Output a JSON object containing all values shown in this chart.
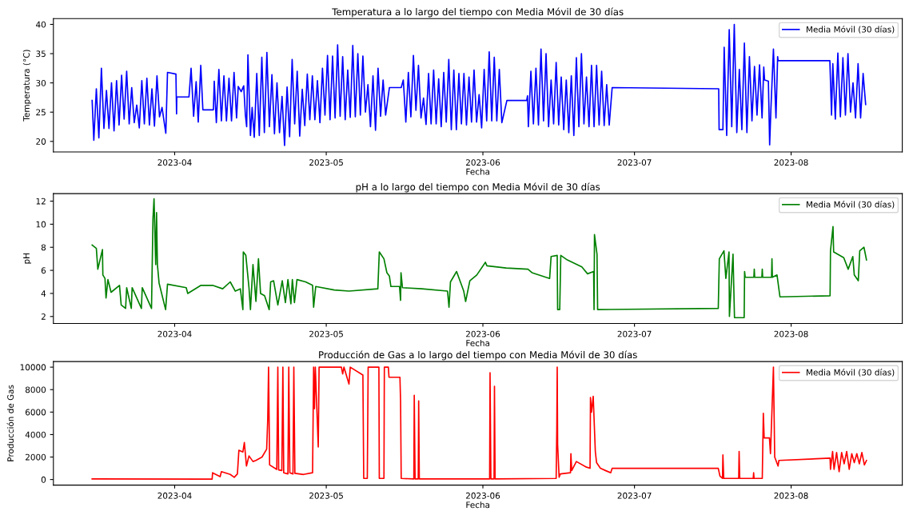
{
  "chart_data": [
    {
      "type": "line",
      "title": "Temperatura a lo largo del tiempo con Media Móvil de 30 días",
      "xlabel": "Fecha",
      "ylabel": "Temperatura (°C)",
      "legend": "top right",
      "xlim": [
        "2023-03-08",
        "2023-08-23"
      ],
      "ylim": [
        18.2,
        41.0
      ],
      "xticks": [
        {
          "value": "2023-04-01",
          "label": "2023-04"
        },
        {
          "value": "2023-05-01",
          "label": "2023-05"
        },
        {
          "value": "2023-06-01",
          "label": "2023-06"
        },
        {
          "value": "2023-07-01",
          "label": "2023-07"
        },
        {
          "value": "2023-08-01",
          "label": "2023-08"
        }
      ],
      "yticks": [
        20,
        25,
        30,
        35,
        40
      ],
      "x": [
        "2023-03-15T16:00",
        "2023-03-16T00:00",
        "2023-03-16T12:00",
        "2023-03-17T00:00",
        "2023-03-17T12:00",
        "2023-03-18T00:00",
        "2023-03-18T12:00",
        "2023-03-19T00:00",
        "2023-03-19T12:00",
        "2023-03-20T00:00",
        "2023-03-20T12:00",
        "2023-03-21T00:00",
        "2023-03-21T12:00",
        "2023-03-22T00:00",
        "2023-03-22T12:00",
        "2023-03-23T00:00",
        "2023-03-23T12:00",
        "2023-03-24T00:00",
        "2023-03-24T12:00",
        "2023-03-25T00:00",
        "2023-03-25T12:00",
        "2023-03-26T00:00",
        "2023-03-26T12:00",
        "2023-03-27T00:00",
        "2023-03-27T12:00",
        "2023-03-28T00:00",
        "2023-03-28T12:00",
        "2023-03-29T00:00",
        "2023-03-29T12:00",
        "2023-03-30T06:00",
        "2023-03-30T14:00",
        "2023-04-01T06:00",
        "2023-04-01T09:00",
        "2023-04-01T10:00",
        "2023-04-03T20:00",
        "2023-04-04T06:00",
        "2023-04-04T18:00",
        "2023-04-05T06:00",
        "2023-04-05T16:00",
        "2023-04-06T04:00",
        "2023-04-06T14:00",
        "2023-04-08T16:00",
        "2023-04-08T20:00",
        "2023-04-09T06:00",
        "2023-04-09T18:00",
        "2023-04-10T06:00",
        "2023-04-10T18:00",
        "2023-04-11T06:00",
        "2023-04-11T18:00",
        "2023-04-12T06:00",
        "2023-04-12T18:00",
        "2023-04-13T06:00",
        "2023-04-13T14:00",
        "2023-04-14T04:00",
        "2023-04-14T16:00",
        "2023-04-15T00:00",
        "2023-04-15T06:00",
        "2023-04-15T12:00",
        "2023-04-16T00:00",
        "2023-04-16T08:00",
        "2023-04-16T18:00",
        "2023-04-17T06:00",
        "2023-04-17T18:00",
        "2023-04-18T06:00",
        "2023-04-18T18:00",
        "2023-04-19T06:00",
        "2023-04-19T18:00",
        "2023-04-20T06:00",
        "2023-04-20T18:00",
        "2023-04-21T06:00",
        "2023-04-21T18:00",
        "2023-04-22T06:00",
        "2023-04-22T18:00",
        "2023-04-23T06:00",
        "2023-04-23T18:00",
        "2023-04-24T06:00",
        "2023-04-24T18:00",
        "2023-04-25T06:00",
        "2023-04-25T18:00",
        "2023-04-26T06:00",
        "2023-04-26T18:00",
        "2023-04-27T06:00",
        "2023-04-27T18:00",
        "2023-04-28T06:00",
        "2023-04-28T18:00",
        "2023-04-29T06:00",
        "2023-04-29T18:00",
        "2023-04-30T06:00",
        "2023-04-30T18:00",
        "2023-05-01T06:00",
        "2023-05-01T18:00",
        "2023-05-02T06:00",
        "2023-05-02T18:00",
        "2023-05-03T06:00",
        "2023-05-03T18:00",
        "2023-05-04T06:00",
        "2023-05-04T18:00",
        "2023-05-05T06:00",
        "2023-05-05T18:00",
        "2023-05-06T06:00",
        "2023-05-06T18:00",
        "2023-05-07T06:00",
        "2023-05-07T18:00",
        "2023-05-08T06:00",
        "2023-05-08T18:00",
        "2023-05-09T06:00",
        "2023-05-09T18:00",
        "2023-05-10T06:00",
        "2023-05-10T18:00",
        "2023-05-11T06:00",
        "2023-05-11T18:00",
        "2023-05-12T06:00",
        "2023-05-12T18:00",
        "2023-05-13T12:00",
        "2023-05-15T20:00",
        "2023-05-16T06:00",
        "2023-05-16T18:00",
        "2023-05-17T06:00",
        "2023-05-17T18:00",
        "2023-05-18T06:00",
        "2023-05-18T18:00",
        "2023-05-19T06:00",
        "2023-05-19T18:00",
        "2023-05-20T06:00",
        "2023-05-20T18:00",
        "2023-05-21T06:00",
        "2023-05-21T18:00",
        "2023-05-22T06:00",
        "2023-05-22T18:00",
        "2023-05-23T06:00",
        "2023-05-23T18:00",
        "2023-05-24T06:00",
        "2023-05-24T18:00",
        "2023-05-25T06:00",
        "2023-05-25T18:00",
        "2023-05-26T06:00",
        "2023-05-26T18:00",
        "2023-05-27T06:00",
        "2023-05-27T18:00",
        "2023-05-28T06:00",
        "2023-05-28T18:00",
        "2023-05-29T06:00",
        "2023-05-29T18:00",
        "2023-05-30T06:00",
        "2023-05-30T18:00",
        "2023-05-31T06:00",
        "2023-05-31T18:00",
        "2023-06-01T06:00",
        "2023-06-01T18:00",
        "2023-06-02T06:00",
        "2023-06-02T18:00",
        "2023-06-03T06:00",
        "2023-06-03T18:00",
        "2023-06-04T06:00",
        "2023-06-04T18:00",
        "2023-06-05T18:00",
        "2023-06-09T16:00",
        "2023-06-09T20:00",
        "2023-06-10T00:00",
        "2023-06-10T12:00",
        "2023-06-11T00:00",
        "2023-06-11T12:00",
        "2023-06-12T00:00",
        "2023-06-12T12:00",
        "2023-06-13T00:00",
        "2023-06-13T12:00",
        "2023-06-14T00:00",
        "2023-06-14T12:00",
        "2023-06-15T00:00",
        "2023-06-15T12:00",
        "2023-06-16T00:00",
        "2023-06-16T12:00",
        "2023-06-17T00:00",
        "2023-06-17T12:00",
        "2023-06-18T00:00",
        "2023-06-18T12:00",
        "2023-06-19T00:00",
        "2023-06-19T12:00",
        "2023-06-20T00:00",
        "2023-06-20T12:00",
        "2023-06-21T00:00",
        "2023-06-21T12:00",
        "2023-06-22T00:00",
        "2023-06-22T12:00",
        "2023-06-23T00:00",
        "2023-06-23T12:00",
        "2023-06-24T00:00",
        "2023-06-24T12:00",
        "2023-06-25T00:00",
        "2023-06-25T12:00",
        "2023-06-26T00:00",
        "2023-06-26T14:00",
        "2023-07-17T16:00",
        "2023-07-17T18:00",
        "2023-07-18T12:00",
        "2023-07-18T18:00",
        "2023-07-19T06:00",
        "2023-07-19T18:00",
        "2023-07-20T06:00",
        "2023-07-20T18:00",
        "2023-07-21T06:00",
        "2023-07-21T18:00",
        "2023-07-22T06:00",
        "2023-07-22T18:00",
        "2023-07-23T06:00",
        "2023-07-23T18:00",
        "2023-07-24T06:00",
        "2023-07-24T18:00",
        "2023-07-25T06:00",
        "2023-07-25T18:00",
        "2023-07-26T06:00",
        "2023-07-26T14:00",
        "2023-07-26T18:00",
        "2023-07-27T12:00",
        "2023-07-27T18:00",
        "2023-07-28T00:00",
        "2023-07-28T12:00",
        "2023-07-29T00:00",
        "2023-07-29T08:00",
        "2023-07-29T10:00",
        "2023-08-08T16:00",
        "2023-08-09T00:00",
        "2023-08-09T06:00",
        "2023-08-09T18:00",
        "2023-08-10T06:00",
        "2023-08-10T18:00",
        "2023-08-11T06:00",
        "2023-08-11T18:00",
        "2023-08-12T06:00",
        "2023-08-12T18:00",
        "2023-08-13T06:00",
        "2023-08-13T18:00",
        "2023-08-14T06:00",
        "2023-08-14T18:00",
        "2023-08-15T06:00",
        "2023-08-15T18:00"
      ],
      "series": [
        {
          "name": "Media Móvil (30 días)",
          "color": "#0000ff",
          "values": [
            27,
            20.2,
            29,
            20.6,
            32.5,
            22.2,
            28.7,
            22.2,
            30,
            21.8,
            30.4,
            22.8,
            31.3,
            23.8,
            32,
            23,
            29.2,
            23.2,
            26.2,
            22.3,
            30.4,
            23,
            30.8,
            22.8,
            29,
            22.6,
            31.2,
            24.2,
            25.8,
            21.4,
            31.8,
            31.5,
            24.7,
            27.6,
            27.6,
            32.5,
            24.3,
            30.2,
            23.3,
            33,
            25.4,
            25.4,
            30.3,
            23.2,
            32.3,
            23.5,
            31.2,
            23.5,
            30.8,
            23.5,
            31.8,
            24,
            29.4,
            28.5,
            29.5,
            24.5,
            22.5,
            34.8,
            21,
            25.8,
            20.7,
            31.6,
            21,
            34.4,
            21.5,
            35.2,
            22.5,
            31.4,
            21.3,
            30,
            21.5,
            27.7,
            19.3,
            29.3,
            20.8,
            34,
            23,
            32,
            20.9,
            28.9,
            22.7,
            31.5,
            23.7,
            31.2,
            23.7,
            30.4,
            23.2,
            32.5,
            24.5,
            34.7,
            23.7,
            34.6,
            24,
            36.5,
            24.3,
            34.5,
            23.7,
            32.2,
            24.1,
            36.4,
            24.2,
            35,
            24.5,
            34.6,
            25,
            29.7,
            22.5,
            31.2,
            21.9,
            32.5,
            24.3,
            30.5,
            24.5,
            29.2,
            29.2,
            30.5,
            23.3,
            31.8,
            24.2,
            34.7,
            25.3,
            33,
            24,
            27.4,
            22.9,
            31.6,
            23,
            32.2,
            23,
            30.7,
            22.5,
            31.8,
            23.3,
            34,
            22,
            32.2,
            22,
            31.6,
            23,
            31.6,
            22.8,
            31,
            23.3,
            32.2,
            23.3,
            28,
            22.3,
            32.3,
            23.5,
            35.3,
            23.5,
            34.4,
            23.5,
            32.3,
            23.2,
            27,
            27,
            27.8,
            22.5,
            32,
            23,
            32.5,
            22.8,
            35.8,
            23.5,
            35,
            22.5,
            30.5,
            23,
            33.5,
            22.8,
            31,
            22,
            30.5,
            21.5,
            31.2,
            21,
            34.3,
            22.5,
            35,
            23,
            31,
            22.5,
            33,
            22.5,
            33,
            22.8,
            32,
            22.7,
            29.7,
            22.8,
            29.2,
            29,
            22,
            22,
            36.1,
            21,
            39.1,
            22.5,
            40,
            21.5,
            32.3,
            22,
            36.8,
            21.5,
            34.5,
            23.5,
            32.8,
            24.5,
            33.1,
            24,
            32.7,
            30.5,
            30.3,
            19.4,
            25.5,
            35.8,
            24,
            34.5,
            33.8,
            33.8,
            24.5,
            33.3,
            23.8,
            35.1,
            24.2,
            34.3,
            24.5,
            35,
            25,
            30,
            24,
            33.3,
            24,
            31.6,
            26.3
          ]
        }
      ]
    },
    {
      "type": "line",
      "title": "pH a lo largo del tiempo con Media Móvil de 30 días",
      "xlabel": "Fecha",
      "ylabel": "pH",
      "legend": "top right",
      "xlim": [
        "2023-03-08",
        "2023-08-23"
      ],
      "ylim": [
        1.4,
        12.65
      ],
      "xticks": [
        {
          "value": "2023-04-01",
          "label": "2023-04"
        },
        {
          "value": "2023-05-01",
          "label": "2023-05"
        },
        {
          "value": "2023-06-01",
          "label": "2023-06"
        },
        {
          "value": "2023-07-01",
          "label": "2023-07"
        },
        {
          "value": "2023-08-01",
          "label": "2023-08"
        }
      ],
      "yticks": [
        2,
        4,
        6,
        8,
        10,
        12
      ],
      "x": [
        "2023-03-15T16:00",
        "2023-03-16T12:00",
        "2023-03-16T19:00",
        "2023-03-17T17:00",
        "2023-03-17T19:00",
        "2023-03-18T05:00",
        "2023-03-18T10:00",
        "2023-03-18T19:00",
        "2023-03-19T10:00",
        "2023-03-21T02:00",
        "2023-03-21T10:00",
        "2023-03-22T07:00",
        "2023-03-22T12:00",
        "2023-03-23T10:00",
        "2023-03-23T14:00",
        "2023-03-25T10:00",
        "2023-03-25T14:00",
        "2023-03-27T10:00",
        "2023-03-27T17:00",
        "2023-03-27T22:00",
        "2023-03-28T06:00",
        "2023-03-28T10:00",
        "2023-03-28T14:00",
        "2023-03-28T22:00",
        "2023-03-30T05:00",
        "2023-03-30T14:00",
        "2023-04-03T07:00",
        "2023-04-03T14:00",
        "2023-04-06T05:00",
        "2023-04-08T12:00",
        "2023-04-10T12:00",
        "2023-04-12T00:00",
        "2023-04-13T00:00",
        "2023-04-14T00:00",
        "2023-04-14T12:00",
        "2023-04-14T14:00",
        "2023-04-15T02:00",
        "2023-04-15T17:00",
        "2023-04-16T00:00",
        "2023-04-16T12:00",
        "2023-04-17T02:00",
        "2023-04-17T14:00",
        "2023-04-18T00:00",
        "2023-04-18T19:00",
        "2023-04-19T17:00",
        "2023-04-20T00:00",
        "2023-04-20T14:00",
        "2023-04-21T10:00",
        "2023-04-22T07:00",
        "2023-04-22T22:00",
        "2023-04-23T10:00",
        "2023-04-24T00:00",
        "2023-04-24T07:00",
        "2023-04-24T17:00",
        "2023-04-25T05:00",
        "2023-04-26T22:00",
        "2023-04-28T07:00",
        "2023-04-28T12:00",
        "2023-04-28T22:00",
        "2023-05-02T14:00",
        "2023-05-05T12:00",
        "2023-05-11T05:00",
        "2023-05-11T12:00",
        "2023-05-12T10:00",
        "2023-05-13T00:00",
        "2023-05-13T12:00",
        "2023-05-13T19:00",
        "2023-05-15T12:00",
        "2023-05-15T17:00",
        "2023-05-15T19:00",
        "2023-05-16T02:00",
        "2023-05-19T22:00",
        "2023-05-25T00:00",
        "2023-05-25T07:00",
        "2023-05-25T14:00",
        "2023-05-26T19:00",
        "2023-05-28T05:00",
        "2023-05-28T14:00",
        "2023-05-29T10:00",
        "2023-05-30T19:00",
        "2023-06-01T12:00",
        "2023-06-01T19:00",
        "2023-06-05T14:00",
        "2023-06-09T22:00",
        "2023-06-10T17:00",
        "2023-06-14T05:00",
        "2023-06-14T12:00",
        "2023-06-15T17:00",
        "2023-06-15T19:00",
        "2023-06-16T05:00",
        "2023-06-16T10:00",
        "2023-06-17T17:00",
        "2023-06-20T14:00",
        "2023-06-21T17:00",
        "2023-06-22T22:00",
        "2023-06-23T00:00",
        "2023-06-23T02:00",
        "2023-06-23T14:00",
        "2023-06-23T17:00",
        "2023-07-17T14:00",
        "2023-07-17T19:00",
        "2023-07-18T17:00",
        "2023-07-19T02:00",
        "2023-07-19T17:00",
        "2023-07-19T19:00",
        "2023-07-20T12:00",
        "2023-07-20T19:00",
        "2023-07-22T17:00",
        "2023-07-22T19:00",
        "2023-07-22T22:00",
        "2023-07-24T15:00",
        "2023-07-24T17:00",
        "2023-07-24T19:00",
        "2023-07-26T05:00",
        "2023-07-26T07:00",
        "2023-07-26T09:00",
        "2023-07-28T03:00",
        "2023-07-28T05:00",
        "2023-07-28T07:00",
        "2023-07-29T05:00",
        "2023-07-29T19:00",
        "2023-08-08T17:00",
        "2023-08-08T19:00",
        "2023-08-09T07:00",
        "2023-08-09T10:00",
        "2023-08-11T10:00",
        "2023-08-12T07:00",
        "2023-08-13T05:00",
        "2023-08-13T12:00",
        "2023-08-14T07:00",
        "2023-08-14T14:00",
        "2023-08-15T10:00",
        "2023-08-15T22:00"
      ],
      "series": [
        {
          "name": "Media Móvil (30 días)",
          "color": "#008000",
          "values": [
            8.2,
            7.9,
            6.1,
            7.8,
            5.6,
            5.3,
            3.6,
            5.2,
            4.1,
            4.7,
            3.0,
            2.7,
            4.5,
            2.7,
            4.5,
            2.7,
            4.5,
            2.7,
            10.5,
            12.2,
            6.5,
            11,
            6.5,
            4.9,
            2.6,
            4.8,
            4.5,
            4.0,
            4.7,
            4.7,
            4.4,
            5.0,
            4.2,
            4.4,
            2.6,
            7.6,
            7.3,
            4.5,
            2.6,
            6.5,
            3.3,
            7.0,
            4.0,
            3.8,
            2.6,
            5.0,
            5.1,
            3.0,
            5.1,
            3.2,
            5.2,
            3.1,
            5.2,
            3.2,
            5.2,
            5.0,
            4.7,
            2.8,
            4.6,
            4.3,
            4.2,
            4.4,
            7.6,
            7.0,
            5.8,
            5.5,
            4.6,
            4.6,
            3.4,
            5.8,
            4.5,
            4.4,
            4.2,
            2.8,
            5.0,
            5.9,
            4.2,
            3.3,
            5.1,
            5.6,
            6.7,
            6.4,
            6.2,
            6.1,
            5.8,
            5.3,
            7.2,
            7.3,
            2.6,
            2.6,
            7.3,
            6.9,
            6.3,
            5.7,
            5.9,
            2.6,
            9.1,
            7.4,
            2.6,
            2.7,
            7.0,
            7.7,
            5.3,
            7.6,
            2.0,
            7.4,
            1.9,
            1.9,
            5.9,
            5.4,
            5.4,
            6.1,
            5.4,
            5.4,
            6.1,
            5.4,
            5.4,
            7.0,
            5.4,
            5.6,
            3.7,
            3.8,
            7.7,
            9.8,
            7.6,
            7.1,
            6.1,
            7.2,
            5.6,
            5.1,
            7.7,
            8.0,
            6.9
          ]
        }
      ]
    },
    {
      "type": "line",
      "title": "Producción de Gas a lo largo del tiempo con Media Móvil de 30 días",
      "xlabel": "Fecha",
      "ylabel": "Producción de Gas",
      "legend": "top right",
      "xlim": [
        "2023-03-08",
        "2023-08-23"
      ],
      "ylim": [
        -500,
        10500
      ],
      "xticks": [
        {
          "value": "2023-04-01",
          "label": "2023-04"
        },
        {
          "value": "2023-05-01",
          "label": "2023-05"
        },
        {
          "value": "2023-06-01",
          "label": "2023-06"
        },
        {
          "value": "2023-07-01",
          "label": "2023-07"
        },
        {
          "value": "2023-08-01",
          "label": "2023-08"
        }
      ],
      "yticks": [
        0,
        2000,
        4000,
        6000,
        8000,
        10000
      ],
      "x": [
        "2023-03-15T16:00",
        "2023-04-08T10:00",
        "2023-04-08T12:00",
        "2023-04-10T00:00",
        "2023-04-10T06:00",
        "2023-04-12T00:00",
        "2023-04-12T19:00",
        "2023-04-13T10:00",
        "2023-04-13T17:00",
        "2023-04-14T12:00",
        "2023-04-14T19:00",
        "2023-04-15T05:00",
        "2023-04-15T17:00",
        "2023-04-16T12:00",
        "2023-04-17T02:00",
        "2023-04-18T07:00",
        "2023-04-19T05:00",
        "2023-04-19T10:00",
        "2023-04-19T14:00",
        "2023-04-19T19:00",
        "2023-04-21T05:00",
        "2023-04-21T10:00",
        "2023-04-21T14:00",
        "2023-04-22T05:00",
        "2023-04-22T10:00",
        "2023-04-22T14:00",
        "2023-04-23T10:00",
        "2023-04-23T14:00",
        "2023-04-23T19:00",
        "2023-04-24T10:00",
        "2023-04-24T14:00",
        "2023-04-24T19:00",
        "2023-04-26T12:00",
        "2023-04-28T07:00",
        "2023-04-28T12:00",
        "2023-04-28T16:00",
        "2023-04-28T20:00",
        "2023-04-29T10:00",
        "2023-04-29T14:00",
        "2023-05-04T00:00",
        "2023-05-04T06:00",
        "2023-05-04T12:00",
        "2023-05-05T12:00",
        "2023-05-05T18:00",
        "2023-05-08T06:00",
        "2023-05-08T10:00",
        "2023-05-09T03:00",
        "2023-05-09T07:00",
        "2023-05-11T10:00",
        "2023-05-11T12:00",
        "2023-05-12T10:00",
        "2023-05-12T12:00",
        "2023-05-13T07:00",
        "2023-05-13T10:00",
        "2023-05-15T14:00",
        "2023-05-15T17:00",
        "2023-05-15T20:00",
        "2023-05-18T08:00",
        "2023-05-18T10:00",
        "2023-05-18T14:00",
        "2023-05-19T05:00",
        "2023-05-19T07:00",
        "2023-05-19T10:00",
        "2023-06-02T08:00",
        "2023-06-02T10:00",
        "2023-06-02T14:00",
        "2023-06-03T05:00",
        "2023-06-03T07:00",
        "2023-06-03T10:00",
        "2023-06-15T12:00",
        "2023-06-15T15:00",
        "2023-06-15T17:00",
        "2023-06-15T19:00",
        "2023-06-16T02:00",
        "2023-06-16T08:00",
        "2023-06-18T08:00",
        "2023-06-18T10:00",
        "2023-06-18T14:00",
        "2023-06-19T12:00",
        "2023-06-21T12:00",
        "2023-06-22T05:00",
        "2023-06-22T07:00",
        "2023-06-22T12:00",
        "2023-06-22T20:00",
        "2023-06-23T06:00",
        "2023-06-23T12:00",
        "2023-06-24T06:00",
        "2023-06-25T06:00",
        "2023-06-26T07:00",
        "2023-06-26T14:00",
        "2023-07-17T14:00",
        "2023-07-17T22:00",
        "2023-07-18T10:00",
        "2023-07-18T12:00",
        "2023-07-18T16:00",
        "2023-07-21T15:00",
        "2023-07-21T17:00",
        "2023-07-21T20:00",
        "2023-07-24T12:00",
        "2023-07-24T14:00",
        "2023-07-24T16:00",
        "2023-07-26T07:00",
        "2023-07-26T12:00",
        "2023-07-26T16:00",
        "2023-07-27T17:00",
        "2023-07-27T22:00",
        "2023-07-28T12:00",
        "2023-07-28T18:00",
        "2023-07-29T10:00",
        "2023-07-29T14:00",
        "2023-08-08T17:00",
        "2023-08-08T19:00",
        "2023-08-09T05:00",
        "2023-08-09T12:00",
        "2023-08-10T00:00",
        "2023-08-10T12:00",
        "2023-08-11T00:00",
        "2023-08-11T12:00",
        "2023-08-12T00:00",
        "2023-08-12T12:00",
        "2023-08-13T00:00",
        "2023-08-13T12:00",
        "2023-08-14T00:00",
        "2023-08-14T12:00",
        "2023-08-15T00:00",
        "2023-08-15T12:00",
        "2023-08-15T22:00"
      ],
      "series": [
        {
          "name": "Media Móvil (30 días)",
          "color": "#ff0000",
          "values": [
            50,
            30,
            600,
            250,
            700,
            450,
            200,
            500,
            2600,
            2450,
            3300,
            1200,
            2100,
            1600,
            1700,
            2000,
            2700,
            5300,
            10000,
            1300,
            900,
            10000,
            850,
            800,
            10000,
            600,
            500,
            10000,
            600,
            500,
            10000,
            550,
            450,
            600,
            10000,
            6300,
            10000,
            2900,
            10000,
            10000,
            9400,
            10000,
            8500,
            10000,
            9300,
            100,
            100,
            10000,
            10000,
            100,
            100,
            10000,
            10000,
            9100,
            9100,
            7000,
            100,
            50,
            7500,
            50,
            50,
            7000,
            50,
            50,
            9500,
            50,
            50,
            8300,
            50,
            100,
            4500,
            10000,
            3100,
            200,
            500,
            600,
            2300,
            800,
            1600,
            1100,
            1000,
            7300,
            6000,
            7400,
            2500,
            1500,
            1000,
            800,
            600,
            1000,
            1000,
            300,
            100,
            2200,
            100,
            100,
            2500,
            100,
            100,
            600,
            100,
            100,
            5900,
            3700,
            3700,
            2300,
            10000,
            2000,
            1200,
            1700,
            1900,
            900,
            2500,
            900,
            2400,
            700,
            2400,
            1400,
            2500,
            900,
            2300,
            1500,
            2300,
            1400,
            2400,
            1300,
            1700
          ]
        }
      ]
    }
  ]
}
